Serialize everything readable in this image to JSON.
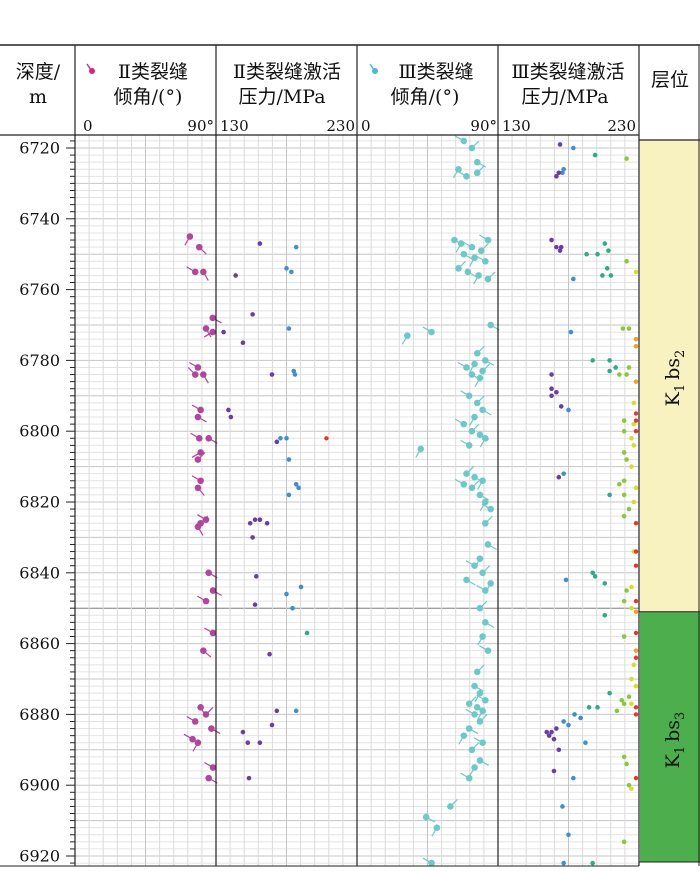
{
  "headers": {
    "depth": [
      "深度/",
      "m"
    ],
    "c1": [
      "Ⅱ类裂缝",
      "倾角/(°)"
    ],
    "c2": [
      "Ⅱ类裂缝激活",
      "压力/MPa"
    ],
    "c3": [
      "Ⅲ类裂缝",
      "倾角/(°)"
    ],
    "c4": [
      "Ⅲ类裂缝激活",
      "压力/MPa"
    ],
    "layer": "层位"
  },
  "scales": {
    "c1": [
      "0",
      "90°"
    ],
    "c2": [
      "130",
      "230"
    ],
    "c3": [
      "0",
      "90°"
    ],
    "c4": [
      "130",
      "230"
    ]
  },
  "units": [
    {
      "label": "K1bs2",
      "text_main": "K",
      "sub1": "1",
      "mid": "bs",
      "sub2": "2",
      "top": 6718,
      "bottom": 6851,
      "color": "#f8f2c0"
    },
    {
      "label": "K1bs3",
      "text_main": "K",
      "sub1": "1",
      "mid": "bs",
      "sub2": "3",
      "top": 6851,
      "bottom": 6922,
      "color": "#4cae4c"
    }
  ],
  "colors": {
    "class2": "#b0479e",
    "class3": "#6fc8c8",
    "legend2": "#d9237f",
    "legend3": "#49b8d9"
  },
  "chart_data": {
    "type": "scatter",
    "y_axis": {
      "label": "深度/m",
      "range": [
        6716,
        6923
      ],
      "ticks": [
        6720,
        6740,
        6760,
        6780,
        6800,
        6820,
        6840,
        6860,
        6880,
        6900,
        6920
      ]
    },
    "tracks": [
      {
        "name": "Ⅱ类裂缝倾角/(°)",
        "xlim": [
          0,
          90
        ],
        "style": "tadpole"
      },
      {
        "name": "Ⅱ类裂缝激活压力/MPa",
        "xlim": [
          130,
          230
        ],
        "style": "dot"
      },
      {
        "name": "Ⅲ类裂缝倾角/(°)",
        "xlim": [
          0,
          90
        ],
        "style": "tadpole"
      },
      {
        "name": "Ⅲ类裂缝激活压力/MPa",
        "xlim": [
          130,
          230
        ],
        "style": "dot"
      }
    ],
    "class2_dip": [
      [
        6745,
        78,
        210
      ],
      [
        6748,
        85,
        135
      ],
      [
        6755,
        82,
        300
      ],
      [
        6755,
        88,
        150
      ],
      [
        6768,
        95,
        120
      ],
      [
        6771,
        90,
        150
      ],
      [
        6772,
        95,
        240
      ],
      [
        6782,
        84,
        300
      ],
      [
        6784,
        82,
        315
      ],
      [
        6784,
        88,
        150
      ],
      [
        6794,
        86,
        300
      ],
      [
        6796,
        84,
        120
      ],
      [
        6802,
        85,
        300
      ],
      [
        6802,
        92,
        120
      ],
      [
        6806,
        86,
        240
      ],
      [
        6808,
        84,
        45
      ],
      [
        6814,
        86,
        300
      ],
      [
        6816,
        84,
        140
      ],
      [
        6825,
        90,
        300
      ],
      [
        6826,
        86,
        45
      ],
      [
        6827,
        84,
        150
      ],
      [
        6840,
        92,
        120
      ],
      [
        6845,
        96,
        120
      ],
      [
        6848,
        90,
        300
      ],
      [
        6857,
        96,
        300
      ],
      [
        6862,
        88,
        130
      ],
      [
        6878,
        86,
        150
      ],
      [
        6880,
        90,
        45
      ],
      [
        6882,
        82,
        300
      ],
      [
        6884,
        94,
        120
      ],
      [
        6887,
        80,
        300
      ],
      [
        6888,
        84,
        210
      ],
      [
        6895,
        98,
        300
      ],
      [
        6898,
        92,
        120
      ]
    ],
    "class2_pressure": [
      [
        6747,
        158
      ],
      [
        6748,
        188
      ],
      [
        6754,
        180
      ],
      [
        6755,
        184
      ],
      [
        6756,
        138
      ],
      [
        6767,
        152
      ],
      [
        6771,
        182
      ],
      [
        6772,
        128
      ],
      [
        6775,
        144
      ],
      [
        6783,
        186
      ],
      [
        6784,
        168
      ],
      [
        6784,
        187
      ],
      [
        6794,
        132
      ],
      [
        6796,
        134
      ],
      [
        6802,
        175
      ],
      [
        6802,
        180
      ],
      [
        6803,
        172
      ],
      [
        6808,
        182
      ],
      [
        6815,
        188
      ],
      [
        6816,
        190
      ],
      [
        6818,
        182
      ],
      [
        6825,
        154
      ],
      [
        6825,
        158
      ],
      [
        6826,
        164
      ],
      [
        6826,
        150
      ],
      [
        6830,
        152
      ],
      [
        6841,
        155
      ],
      [
        6844,
        192
      ],
      [
        6846,
        180
      ],
      [
        6849,
        154
      ],
      [
        6850,
        185
      ],
      [
        6857,
        197
      ],
      [
        6863,
        166
      ],
      [
        6879,
        188
      ],
      [
        6879,
        172
      ],
      [
        6883,
        168
      ],
      [
        6885,
        144
      ],
      [
        6888,
        148
      ],
      [
        6888,
        158
      ],
      [
        6898,
        149
      ]
    ],
    "class3_dip": [
      [
        6718,
        72,
        300
      ],
      [
        6720,
        78,
        45
      ],
      [
        6724,
        82,
        120
      ],
      [
        6726,
        68,
        210
      ],
      [
        6728,
        74,
        300
      ],
      [
        6727,
        82,
        45
      ],
      [
        6746,
        65,
        120
      ],
      [
        6747,
        70,
        210
      ],
      [
        6748,
        78,
        300
      ],
      [
        6749,
        85,
        45
      ],
      [
        6750,
        72,
        120
      ],
      [
        6751,
        80,
        210
      ],
      [
        6752,
        88,
        300
      ],
      [
        6754,
        68,
        45
      ],
      [
        6755,
        75,
        120
      ],
      [
        6756,
        83,
        210
      ],
      [
        6746,
        90,
        300
      ],
      [
        6757,
        90,
        45
      ],
      [
        6770,
        92,
        120
      ],
      [
        6772,
        48,
        300
      ],
      [
        6773,
        30,
        210
      ],
      [
        6778,
        82,
        45
      ],
      [
        6780,
        88,
        120
      ],
      [
        6781,
        80,
        210
      ],
      [
        6782,
        74,
        300
      ],
      [
        6783,
        86,
        45
      ],
      [
        6784,
        78,
        120
      ],
      [
        6785,
        84,
        210
      ],
      [
        6790,
        76,
        300
      ],
      [
        6792,
        82,
        45
      ],
      [
        6794,
        86,
        120
      ],
      [
        6796,
        80,
        210
      ],
      [
        6798,
        72,
        300
      ],
      [
        6800,
        78,
        45
      ],
      [
        6801,
        84,
        120
      ],
      [
        6802,
        88,
        210
      ],
      [
        6804,
        76,
        300
      ],
      [
        6805,
        40,
        210
      ],
      [
        6812,
        74,
        45
      ],
      [
        6813,
        80,
        120
      ],
      [
        6814,
        86,
        210
      ],
      [
        6815,
        72,
        300
      ],
      [
        6816,
        78,
        45
      ],
      [
        6818,
        84,
        120
      ],
      [
        6820,
        88,
        210
      ],
      [
        6822,
        92,
        300
      ],
      [
        6826,
        88,
        45
      ],
      [
        6832,
        90,
        120
      ],
      [
        6836,
        84,
        210
      ],
      [
        6838,
        80,
        300
      ],
      [
        6840,
        86,
        45
      ],
      [
        6842,
        74,
        120
      ],
      [
        6843,
        92,
        210
      ],
      [
        6845,
        88,
        300
      ],
      [
        6850,
        84,
        45
      ],
      [
        6854,
        88,
        120
      ],
      [
        6858,
        86,
        210
      ],
      [
        6862,
        90,
        300
      ],
      [
        6868,
        82,
        45
      ],
      [
        6872,
        80,
        120
      ],
      [
        6874,
        84,
        210
      ],
      [
        6876,
        88,
        300
      ],
      [
        6877,
        76,
        45
      ],
      [
        6878,
        82,
        120
      ],
      [
        6879,
        86,
        210
      ],
      [
        6880,
        80,
        300
      ],
      [
        6882,
        84,
        45
      ],
      [
        6884,
        76,
        120
      ],
      [
        6886,
        72,
        210
      ],
      [
        6888,
        86,
        300
      ],
      [
        6890,
        78,
        45
      ],
      [
        6893,
        84,
        120
      ],
      [
        6895,
        80,
        210
      ],
      [
        6898,
        76,
        300
      ],
      [
        6906,
        62,
        45
      ],
      [
        6909,
        44,
        120
      ],
      [
        6912,
        52,
        210
      ],
      [
        6922,
        48,
        300
      ],
      [
        6923,
        58,
        45
      ]
    ],
    "class3_pressure": [
      [
        6719,
        173
      ],
      [
        6720,
        184
      ],
      [
        6722,
        202
      ],
      [
        6726,
        176
      ],
      [
        6727,
        175
      ],
      [
        6727,
        172
      ],
      [
        6728,
        170
      ],
      [
        6723,
        228
      ],
      [
        6746,
        166
      ],
      [
        6747,
        210
      ],
      [
        6748,
        170
      ],
      [
        6748,
        174
      ],
      [
        6749,
        173
      ],
      [
        6749,
        213
      ],
      [
        6750,
        195
      ],
      [
        6750,
        204
      ],
      [
        6752,
        228
      ],
      [
        6754,
        212
      ],
      [
        6755,
        236
      ],
      [
        6756,
        215
      ],
      [
        6756,
        208
      ],
      [
        6757,
        184
      ],
      [
        6771,
        225
      ],
      [
        6771,
        230
      ],
      [
        6772,
        182
      ],
      [
        6774,
        239
      ],
      [
        6776,
        238
      ],
      [
        6780,
        200
      ],
      [
        6780,
        214
      ],
      [
        6782,
        219
      ],
      [
        6782,
        230
      ],
      [
        6783,
        214
      ],
      [
        6784,
        222
      ],
      [
        6784,
        228
      ],
      [
        6784,
        166
      ],
      [
        6786,
        240
      ],
      [
        6788,
        166
      ],
      [
        6789,
        170
      ],
      [
        6790,
        166
      ],
      [
        6792,
        234
      ],
      [
        6793,
        174
      ],
      [
        6794,
        180
      ],
      [
        6797,
        226
      ],
      [
        6798,
        234
      ],
      [
        6800,
        226
      ],
      [
        6802,
        232
      ],
      [
        6804,
        234
      ],
      [
        6806,
        226
      ],
      [
        6808,
        228
      ],
      [
        6810,
        232
      ],
      [
        6812,
        176
      ],
      [
        6813,
        172
      ],
      [
        6814,
        226
      ],
      [
        6815,
        222
      ],
      [
        6816,
        236
      ],
      [
        6818,
        214
      ],
      [
        6818,
        226
      ],
      [
        6820,
        234
      ],
      [
        6822,
        230
      ],
      [
        6824,
        226
      ],
      [
        6834,
        234
      ],
      [
        6840,
        200
      ],
      [
        6841,
        202
      ],
      [
        6842,
        178
      ],
      [
        6843,
        210
      ],
      [
        6844,
        232
      ],
      [
        6845,
        228
      ],
      [
        6848,
        226
      ],
      [
        6850,
        232
      ],
      [
        6851,
        240
      ],
      [
        6852,
        210
      ],
      [
        6858,
        226
      ],
      [
        6862,
        240
      ],
      [
        6866,
        234
      ],
      [
        6870,
        232
      ],
      [
        6872,
        236
      ],
      [
        6874,
        214
      ],
      [
        6875,
        230
      ],
      [
        6876,
        224
      ],
      [
        6877,
        226
      ],
      [
        6877,
        232
      ],
      [
        6878,
        204
      ],
      [
        6878,
        197
      ],
      [
        6879,
        220
      ],
      [
        6880,
        185
      ],
      [
        6881,
        190
      ],
      [
        6882,
        176
      ],
      [
        6883,
        180
      ],
      [
        6884,
        170
      ],
      [
        6885,
        166
      ],
      [
        6885,
        162
      ],
      [
        6886,
        164
      ],
      [
        6887,
        168
      ],
      [
        6888,
        194
      ],
      [
        6890,
        172
      ],
      [
        6892,
        226
      ],
      [
        6894,
        228
      ],
      [
        6896,
        168
      ],
      [
        6898,
        184
      ],
      [
        6900,
        230
      ],
      [
        6901,
        232
      ],
      [
        6906,
        175
      ],
      [
        6914,
        180
      ],
      [
        6916,
        226
      ],
      [
        6922,
        176
      ],
      [
        6922,
        200
      ],
      [
        6923,
        212
      ]
    ],
    "edge_points": [
      [
        6795,
        240
      ],
      [
        6797,
        245
      ],
      [
        6800,
        236
      ],
      [
        6826,
        238
      ],
      [
        6834,
        236
      ],
      [
        6838,
        238
      ],
      [
        6848,
        236
      ],
      [
        6857,
        238
      ],
      [
        6864,
        238
      ],
      [
        6878,
        236
      ],
      [
        6880,
        238
      ],
      [
        6898,
        236
      ]
    ]
  }
}
